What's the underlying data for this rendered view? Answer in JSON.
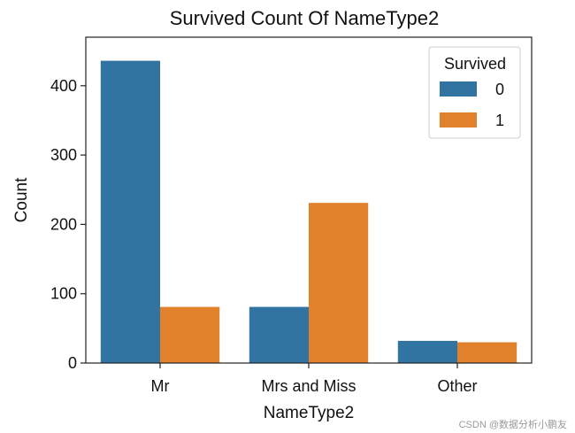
{
  "chart_data": {
    "type": "bar",
    "title": "Survived Count Of NameType2",
    "xlabel": "NameType2",
    "ylabel": "Count",
    "categories": [
      "Mr",
      "Mrs and Miss",
      "Other"
    ],
    "series": [
      {
        "name": "0",
        "values": [
          436,
          81,
          32
        ],
        "color": "#3274a1"
      },
      {
        "name": "1",
        "values": [
          81,
          231,
          30
        ],
        "color": "#e1812c"
      }
    ],
    "ylim": [
      0,
      470
    ],
    "yticks": [
      0,
      100,
      200,
      300,
      400
    ],
    "legend": {
      "title": "Survived",
      "placement": "top-right"
    },
    "grid": false
  },
  "watermark": "CSDN @数据分析小鹏友"
}
